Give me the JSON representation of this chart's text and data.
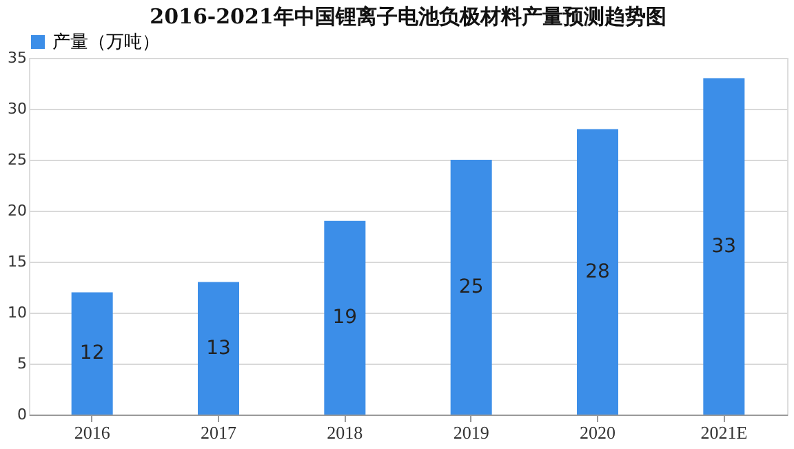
{
  "chart_data": {
    "type": "bar",
    "title": "2016-2021年中国锂离子电池负极材料产量预测趋势图",
    "categories": [
      "2016",
      "2017",
      "2018",
      "2019",
      "2020",
      "2021E"
    ],
    "series": [
      {
        "name": "产量（万吨）",
        "color": "#3c8ee8",
        "values": [
          12,
          13,
          19,
          25,
          28,
          33
        ]
      }
    ],
    "ylim": [
      0,
      35
    ],
    "yticks": [
      0,
      5,
      10,
      15,
      20,
      25,
      30,
      35
    ],
    "grid": "y",
    "legend": "top",
    "data_labels": true
  }
}
